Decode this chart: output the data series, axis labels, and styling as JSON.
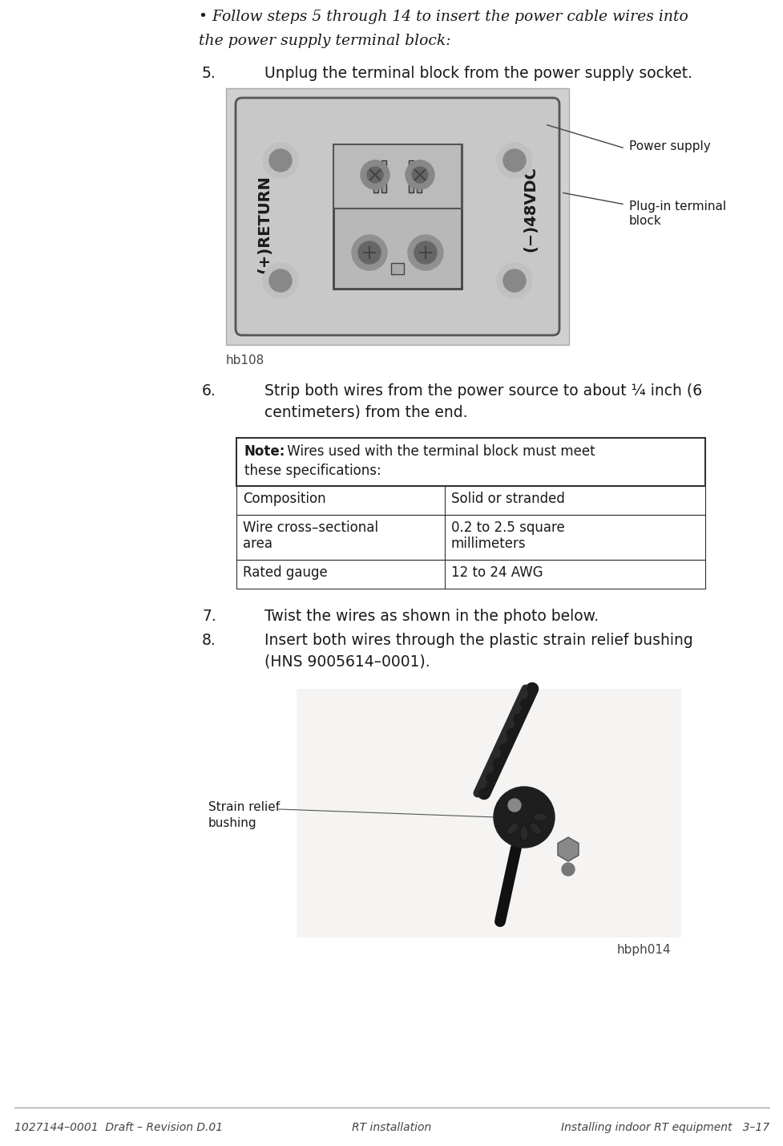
{
  "bg_color": "#ffffff",
  "text_color": "#1a1a1a",
  "page_width": 9.78,
  "page_height": 14.29,
  "dpi": 100,
  "footer_left": "1027144–0001  Draft – Revision D.01",
  "footer_center": "RT installation",
  "footer_right": "Installing indoor RT equipment   3–17",
  "bullet_line1": "• Follow steps 5 through 14 to insert the power cable wires into",
  "bullet_line2": "the power supply terminal block:",
  "step5_num": "5.",
  "step5_text": "Unplug the terminal block from the power supply socket.",
  "step6_num": "6.",
  "step6_line1": "Strip both wires from the power source to about ¼ inch (6",
  "step6_line2": "centimeters) from the end.",
  "step7_num": "7.",
  "step7_text": "Twist the wires as shown in the photo below.",
  "step8_num": "8.",
  "step8_line1": "Insert both wires through the plastic strain relief bushing",
  "step8_line2": "(HNS 9005614–0001).",
  "hb108_label": "hb108",
  "hbph014_label": "hbph014",
  "label_power_supply": "Power supply",
  "label_plugin_line1": "Plug-in terminal",
  "label_plugin_line2": "block",
  "label_strain_line1": "Strain relief",
  "label_strain_line2": "bushing",
  "note_bold": "Note:",
  "note_rest": " Wires used with the terminal block must meet",
  "note_line2": "these specifications:",
  "table_rows": [
    [
      "Composition",
      "Solid or stranded"
    ],
    [
      "Wire cross–sectional\narea",
      "0.2 to 2.5 square\nmillimeters"
    ],
    [
      "Rated gauge",
      "12 to 24 AWG"
    ]
  ]
}
